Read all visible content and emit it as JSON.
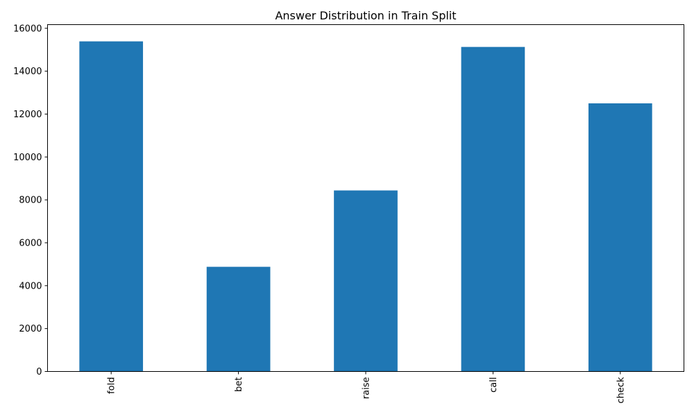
{
  "chart_data": {
    "type": "bar",
    "title": "Answer Distribution in Train Split",
    "xlabel": "",
    "ylabel": "",
    "categories": [
      "fold",
      "bet",
      "raise",
      "call",
      "check"
    ],
    "values": [
      15390,
      4880,
      8440,
      15130,
      12500
    ],
    "ylim": [
      0,
      16170
    ],
    "yticks": [
      0,
      2000,
      4000,
      6000,
      8000,
      10000,
      12000,
      14000,
      16000
    ],
    "grid": false,
    "legend": "none",
    "bar_color": "#1f77b4"
  }
}
